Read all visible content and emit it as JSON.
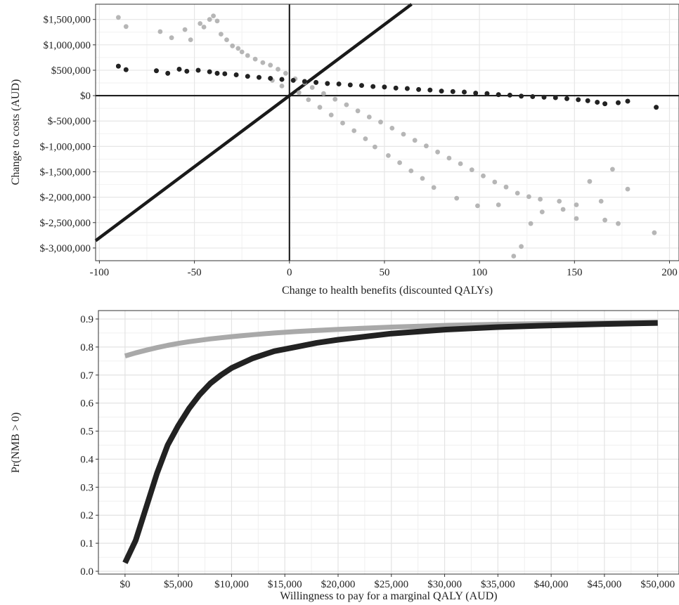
{
  "chart_data": [
    {
      "type": "scatter",
      "title": "",
      "xlabel": "Change to health benefits (discounted QALYs)",
      "ylabel": "Change to costs (AUD)",
      "xlim": [
        -102,
        205
      ],
      "ylim": [
        -3250000,
        1800000
      ],
      "x_ticks": [
        -100,
        -50,
        0,
        50,
        100,
        150,
        200
      ],
      "x_tick_labels": [
        "-100",
        "-50",
        "0",
        "50",
        "100",
        "150",
        "200"
      ],
      "y_ticks": [
        1500000,
        1000000,
        500000,
        0,
        -500000,
        -1000000,
        -1500000,
        -2000000,
        -2500000,
        -3000000
      ],
      "y_tick_labels": [
        "$1,500,000",
        "$1,000,000",
        "$500,000",
        "$0",
        "$-500,000",
        "$-1,000,000",
        "$-1,500,000",
        "$-2,000,000",
        "$-2,500,000",
        "$-3,000,000"
      ],
      "grid": true,
      "reference_lines": {
        "vertical_x": 0,
        "horizontal_y": 0,
        "threshold_slope": 28000
      },
      "series": [
        {
          "color": "#a9a9a9",
          "points": [
            [
              -90,
              1540000
            ],
            [
              -86,
              1360000
            ],
            [
              -68,
              1260000
            ],
            [
              -62,
              1140000
            ],
            [
              -55,
              1300000
            ],
            [
              -52,
              1100000
            ],
            [
              -47,
              1420000
            ],
            [
              -45,
              1350000
            ],
            [
              -42,
              1500000
            ],
            [
              -40,
              1570000
            ],
            [
              -38,
              1470000
            ],
            [
              -36,
              1210000
            ],
            [
              -33,
              1100000
            ],
            [
              -30,
              980000
            ],
            [
              -27,
              930000
            ],
            [
              -25,
              860000
            ],
            [
              -22,
              790000
            ],
            [
              -18,
              720000
            ],
            [
              -14,
              650000
            ],
            [
              -10,
              600000
            ],
            [
              -6,
              520000
            ],
            [
              -2,
              440000
            ],
            [
              3,
              330000
            ],
            [
              8,
              250000
            ],
            [
              12,
              160000
            ],
            [
              18,
              40000
            ],
            [
              24,
              -70000
            ],
            [
              30,
              -180000
            ],
            [
              36,
              -300000
            ],
            [
              42,
              -420000
            ],
            [
              48,
              -520000
            ],
            [
              54,
              -640000
            ],
            [
              60,
              -760000
            ],
            [
              66,
              -880000
            ],
            [
              72,
              -990000
            ],
            [
              78,
              -1110000
            ],
            [
              84,
              -1230000
            ],
            [
              90,
              -1340000
            ],
            [
              96,
              -1460000
            ],
            [
              102,
              -1580000
            ],
            [
              108,
              -1700000
            ],
            [
              114,
              -1800000
            ],
            [
              120,
              -1920000
            ],
            [
              126,
              -1990000
            ],
            [
              132,
              -2040000
            ],
            [
              142,
              -2080000
            ],
            [
              151,
              -2150000
            ],
            [
              158,
              -1690000
            ],
            [
              164,
              -2080000
            ],
            [
              170,
              -1450000
            ],
            [
              178,
              -1840000
            ],
            [
              192,
              -2700000
            ],
            [
              173,
              -2520000
            ],
            [
              166,
              -2450000
            ],
            [
              151,
              -2420000
            ],
            [
              144,
              -2240000
            ],
            [
              133,
              -2290000
            ],
            [
              127,
              -2520000
            ],
            [
              118,
              -3160000
            ],
            [
              122,
              -2970000
            ],
            [
              110,
              -2150000
            ],
            [
              99,
              -2170000
            ],
            [
              88,
              -2020000
            ],
            [
              76,
              -1810000
            ],
            [
              70,
              -1630000
            ],
            [
              64,
              -1480000
            ],
            [
              58,
              -1320000
            ],
            [
              52,
              -1180000
            ],
            [
              45,
              -1010000
            ],
            [
              40,
              -850000
            ],
            [
              34,
              -690000
            ],
            [
              28,
              -540000
            ],
            [
              22,
              -380000
            ],
            [
              16,
              -230000
            ],
            [
              10,
              -80000
            ],
            [
              5,
              60000
            ],
            [
              -4,
              190000
            ],
            [
              -9,
              300000
            ]
          ]
        },
        {
          "color": "#222222",
          "points": [
            [
              -90,
              580000
            ],
            [
              -86,
              510000
            ],
            [
              -70,
              490000
            ],
            [
              -64,
              440000
            ],
            [
              -58,
              520000
            ],
            [
              -54,
              480000
            ],
            [
              -48,
              500000
            ],
            [
              -42,
              470000
            ],
            [
              -38,
              440000
            ],
            [
              -34,
              430000
            ],
            [
              -28,
              410000
            ],
            [
              -22,
              380000
            ],
            [
              -16,
              360000
            ],
            [
              -10,
              340000
            ],
            [
              -4,
              320000
            ],
            [
              2,
              300000
            ],
            [
              8,
              280000
            ],
            [
              14,
              260000
            ],
            [
              20,
              240000
            ],
            [
              26,
              230000
            ],
            [
              32,
              210000
            ],
            [
              38,
              200000
            ],
            [
              44,
              180000
            ],
            [
              50,
              170000
            ],
            [
              56,
              150000
            ],
            [
              62,
              140000
            ],
            [
              68,
              120000
            ],
            [
              74,
              110000
            ],
            [
              80,
              90000
            ],
            [
              86,
              80000
            ],
            [
              92,
              70000
            ],
            [
              98,
              50000
            ],
            [
              104,
              40000
            ],
            [
              110,
              20000
            ],
            [
              116,
              10000
            ],
            [
              122,
              -10000
            ],
            [
              128,
              -20000
            ],
            [
              134,
              -30000
            ],
            [
              140,
              -40000
            ],
            [
              146,
              -60000
            ],
            [
              152,
              -80000
            ],
            [
              157,
              -100000
            ],
            [
              162,
              -130000
            ],
            [
              166,
              -160000
            ],
            [
              173,
              -140000
            ],
            [
              178,
              -110000
            ],
            [
              193,
              -230000
            ]
          ]
        }
      ]
    },
    {
      "type": "line",
      "title": "",
      "xlabel": "Willingness to pay for a marginal QALY (AUD)",
      "ylabel": "Pr(NMB > 0)",
      "xlim": [
        -2500,
        52000
      ],
      "ylim": [
        -0.01,
        0.93
      ],
      "x_ticks": [
        0,
        5000,
        10000,
        15000,
        20000,
        25000,
        30000,
        35000,
        40000,
        45000,
        50000
      ],
      "x_tick_labels": [
        "$0",
        "$5,000",
        "$10,000",
        "$15,000",
        "$20,000",
        "$25,000",
        "$30,000",
        "$35,000",
        "$40,000",
        "$45,000",
        "$50,000"
      ],
      "y_ticks": [
        0.0,
        0.1,
        0.2,
        0.3,
        0.4,
        0.5,
        0.6,
        0.7,
        0.8,
        0.9
      ],
      "y_tick_labels": [
        "0.0",
        "0.1",
        "0.2",
        "0.3",
        "0.4",
        "0.5",
        "0.6",
        "0.7",
        "0.8",
        "0.9"
      ],
      "grid": true,
      "x": [
        0,
        1000,
        2000,
        3000,
        4000,
        5000,
        6000,
        7000,
        8000,
        9000,
        10000,
        12000,
        14000,
        16000,
        18000,
        20000,
        25000,
        30000,
        35000,
        40000,
        45000,
        50000
      ],
      "series": [
        {
          "color": "#a9a9a9",
          "values": [
            0.768,
            0.779,
            0.789,
            0.798,
            0.806,
            0.813,
            0.819,
            0.824,
            0.829,
            0.833,
            0.837,
            0.844,
            0.85,
            0.855,
            0.859,
            0.863,
            0.871,
            0.877,
            0.881,
            0.884,
            0.886,
            0.888
          ]
        },
        {
          "color": "#222222",
          "values": [
            0.03,
            0.11,
            0.23,
            0.35,
            0.45,
            0.52,
            0.58,
            0.63,
            0.67,
            0.7,
            0.725,
            0.76,
            0.785,
            0.8,
            0.815,
            0.826,
            0.848,
            0.862,
            0.871,
            0.877,
            0.882,
            0.886
          ]
        }
      ]
    }
  ]
}
